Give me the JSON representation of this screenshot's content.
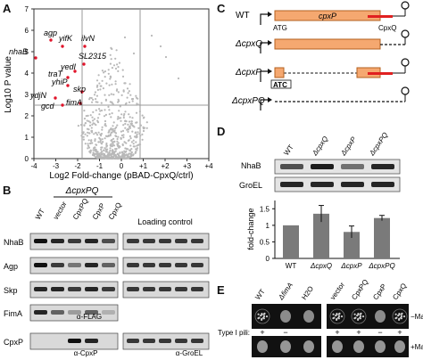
{
  "panels": {
    "A": {
      "label": "A",
      "ylabel": "Log10 P value",
      "xlabel": "Log2 Fold-change (pBAD-CpxQ/ctrl)",
      "xticks": [
        "-4",
        "-3",
        "-2",
        "-1",
        "0",
        "+1",
        "+2",
        "+3",
        "+4"
      ],
      "yticks": [
        "0",
        "1",
        "2",
        "3",
        "4",
        "5",
        "6",
        "7"
      ],
      "gene_labels": [
        "agp",
        "ilvN",
        "yifK",
        "nhaB",
        "SL2315",
        "yedI",
        "traT",
        "yhiP",
        "skp",
        "ydjN",
        "gcd",
        "fimA"
      ]
    },
    "B": {
      "label": "B",
      "strain": "ΔcpxPQ",
      "lanes": [
        "WT",
        "vector",
        "CpxPQ",
        "CpxP",
        "CpxQ"
      ],
      "loading_control": "Loading control",
      "rows": [
        "NhaB",
        "Agp",
        "Skp",
        "FimA",
        "CpxP"
      ],
      "antibodies": [
        "α-FLAG",
        "α-CpxP",
        "α-GroEL"
      ]
    },
    "C": {
      "label": "C",
      "constructs": [
        "WT",
        "ΔcpxQ",
        "ΔcpxP",
        "ΔcpxPQ"
      ],
      "gene": "cpxP",
      "sub": "CpxQ",
      "atg": "ATG"
    },
    "D": {
      "label": "D",
      "lanes": [
        "WT",
        "ΔcpxQ",
        "ΔcpxP",
        "ΔcpxPQ"
      ],
      "blot_rows": [
        "NhaB",
        "GroEL"
      ],
      "ylabel": "fold-change",
      "yticks": [
        "0",
        "0.5",
        "1",
        "1.5"
      ],
      "xlabels": [
        "WT",
        "ΔcpxQ",
        "ΔcpxP",
        "ΔcpxPQ"
      ]
    },
    "E": {
      "label": "E",
      "cols": [
        "WT",
        "ΔfimA",
        "H2O",
        "vector",
        "CpxPQ",
        "CpxP",
        "CpxQ"
      ],
      "row_label": "Type I pili:",
      "signs": [
        "+",
        "−",
        "",
        "+",
        "+",
        "−",
        "+"
      ],
      "side_labels": [
        "−Man",
        "+Man"
      ]
    }
  },
  "chart_data": {
    "type": "bar",
    "categories": [
      "WT",
      "ΔcpxQ",
      "ΔcpxP",
      "ΔcpxPQ"
    ],
    "values": [
      1.0,
      1.35,
      0.8,
      1.22
    ],
    "errors": [
      0,
      0.25,
      0.18,
      0.08
    ],
    "ylabel": "fold-change",
    "ylim": [
      0,
      1.75
    ]
  }
}
